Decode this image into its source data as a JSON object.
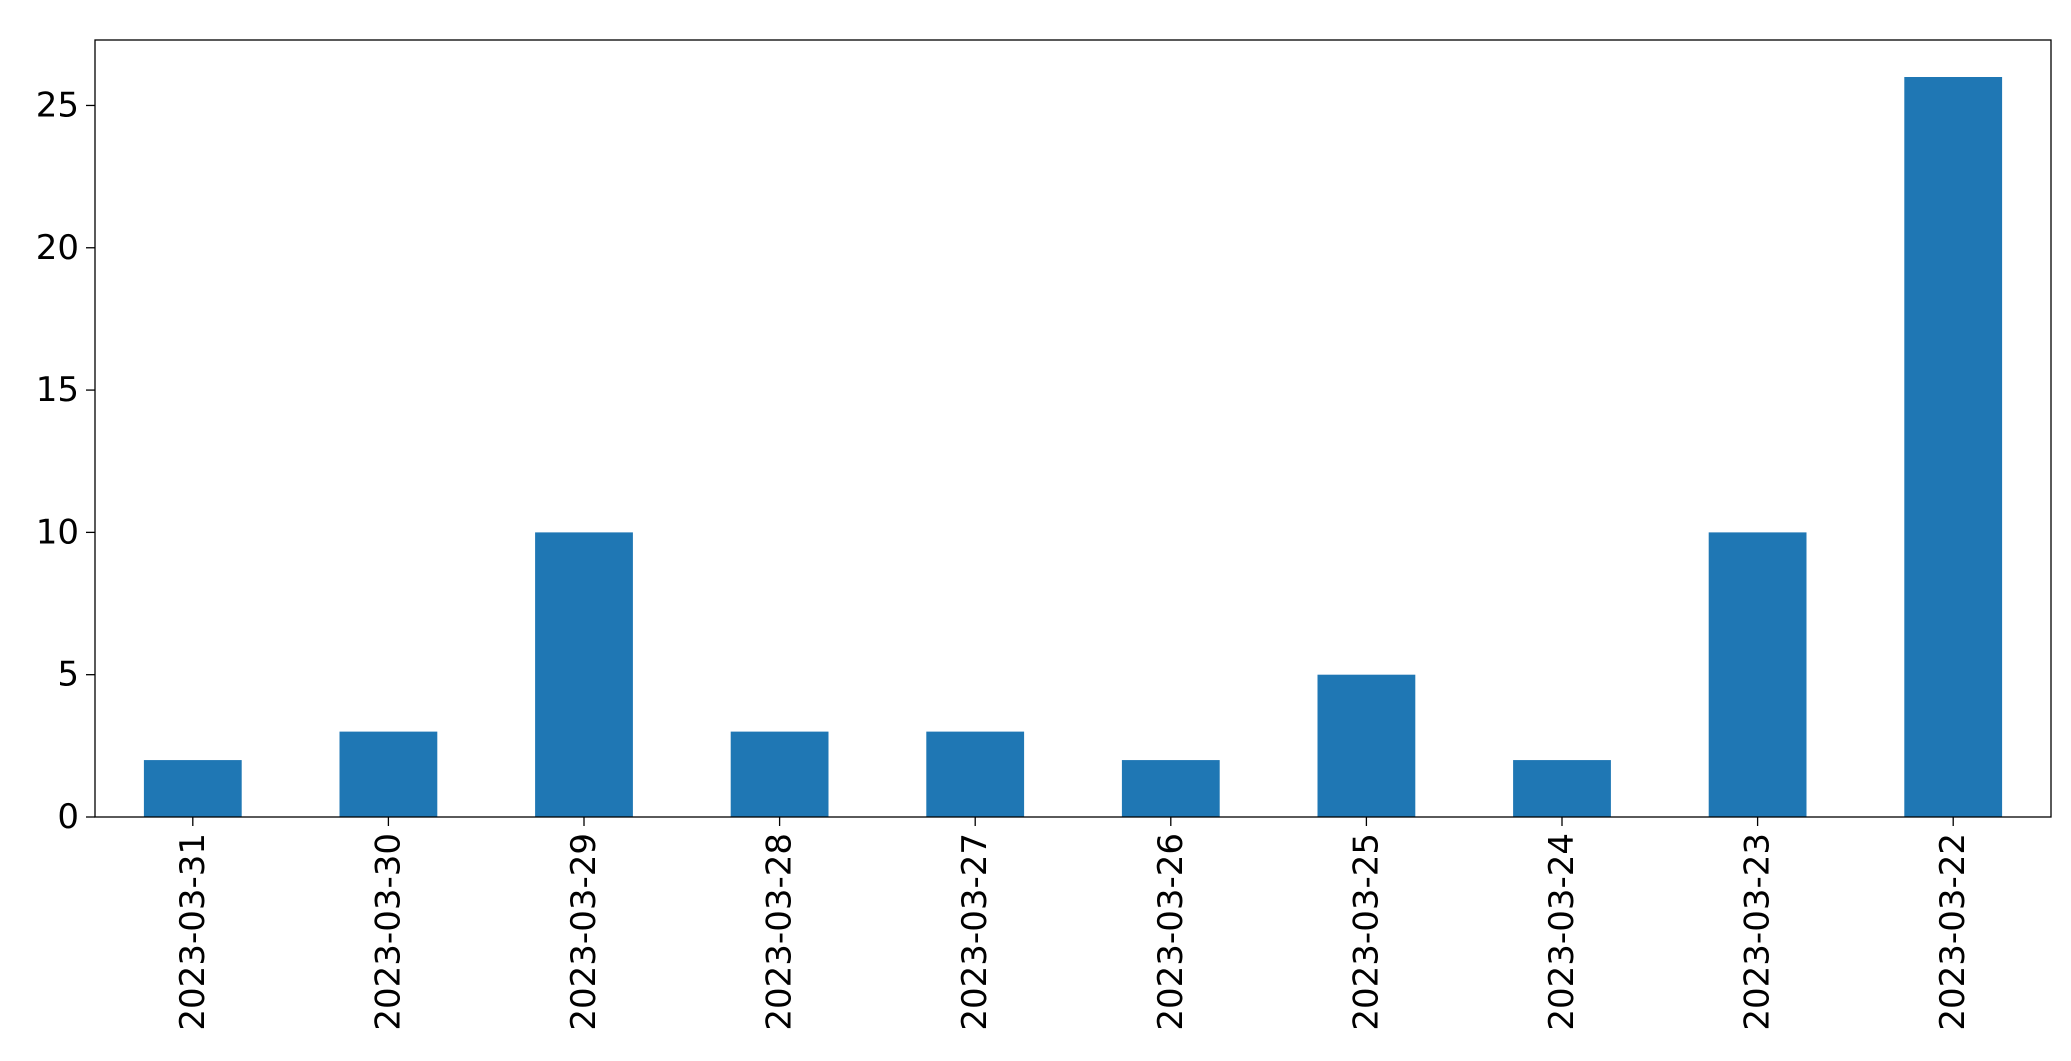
{
  "chart_data": {
    "type": "bar",
    "categories": [
      "2023-03-31",
      "2023-03-30",
      "2023-03-29",
      "2023-03-28",
      "2023-03-27",
      "2023-03-26",
      "2023-03-25",
      "2023-03-24",
      "2023-03-23",
      "2023-03-22"
    ],
    "values": [
      2,
      3,
      10,
      3,
      3,
      2,
      5,
      2,
      10,
      26
    ],
    "color": "#1f77b4",
    "ylim": [
      0,
      27.3
    ],
    "yticks": [
      0,
      5,
      10,
      15,
      20,
      25
    ],
    "grid": false
  }
}
